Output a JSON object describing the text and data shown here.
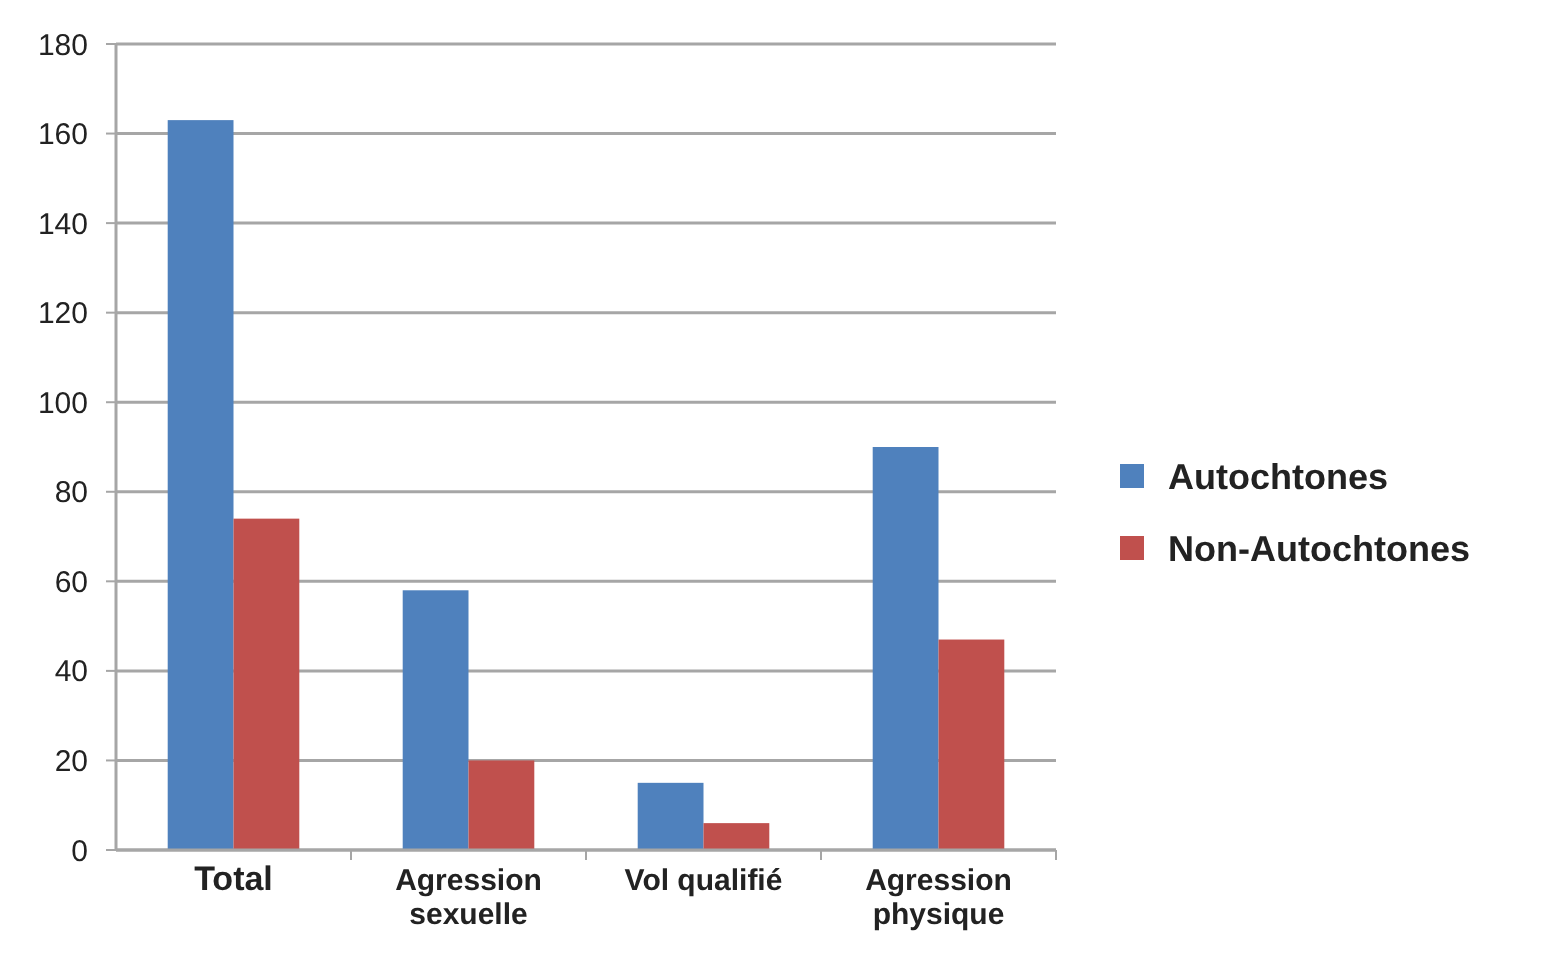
{
  "chart_data": {
    "type": "bar",
    "categories": [
      "Total",
      "Agression sexuelle",
      "Vol qualifié",
      "Agression physique"
    ],
    "series": [
      {
        "name": "Autochtones",
        "color": "#4f81bd",
        "values": [
          163,
          58,
          15,
          90
        ]
      },
      {
        "name": "Non-Autochtones",
        "color": "#c0504d",
        "values": [
          74,
          20,
          6,
          47
        ]
      }
    ],
    "ylim": [
      0,
      180
    ],
    "yticks": [
      0,
      20,
      40,
      60,
      80,
      100,
      120,
      140,
      160,
      180
    ],
    "grid": "y",
    "legend": "right"
  }
}
